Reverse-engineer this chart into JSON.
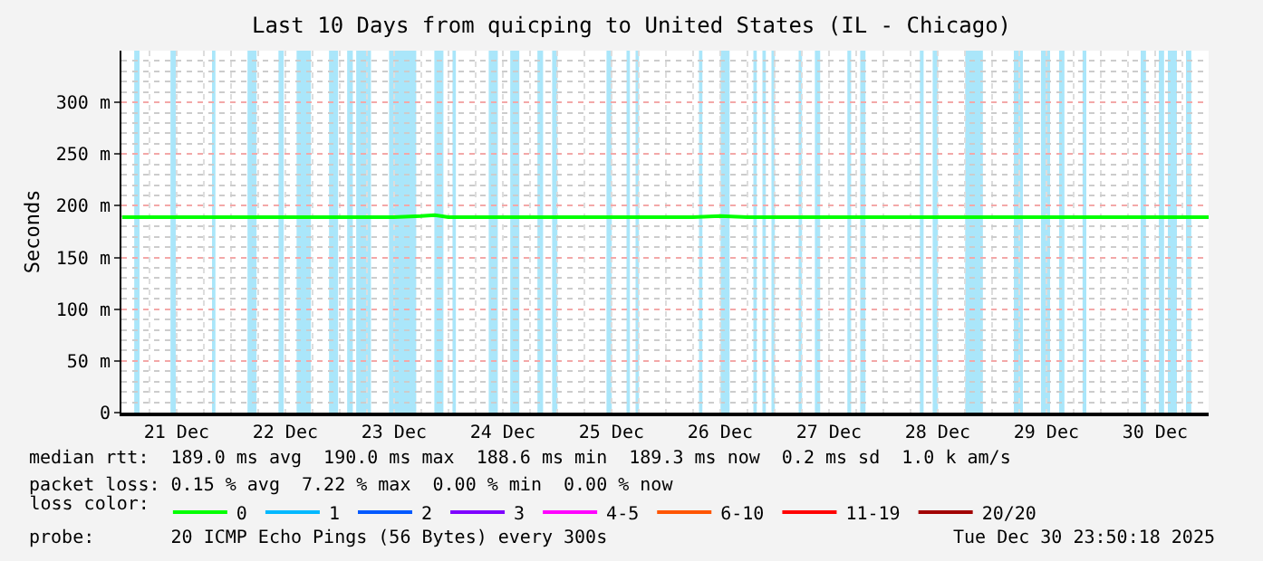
{
  "chart_data": {
    "type": "line",
    "title": "Last 10 Days from quicping to United States (IL - Chicago)",
    "ylabel": "Seconds",
    "x": [
      "2025-12-21T00:00",
      "2025-12-21T06:00",
      "2025-12-21T12:00",
      "2025-12-21T18:00",
      "2025-12-22T00:00",
      "2025-12-22T06:00",
      "2025-12-22T12:00",
      "2025-12-22T18:00",
      "2025-12-23T00:00",
      "2025-12-23T06:00",
      "2025-12-23T12:00",
      "2025-12-23T18:00",
      "2025-12-23T21:00",
      "2025-12-24T00:00",
      "2025-12-24T06:00",
      "2025-12-24T12:00",
      "2025-12-24T18:00",
      "2025-12-25T00:00",
      "2025-12-25T06:00",
      "2025-12-25T12:00",
      "2025-12-25T18:00",
      "2025-12-26T00:00",
      "2025-12-26T06:00",
      "2025-12-26T12:00",
      "2025-12-26T18:00",
      "2025-12-27T00:00",
      "2025-12-27T06:00",
      "2025-12-27T12:00",
      "2025-12-27T18:00",
      "2025-12-28T00:00",
      "2025-12-28T06:00",
      "2025-12-28T12:00",
      "2025-12-28T18:00",
      "2025-12-29T00:00",
      "2025-12-29T06:00",
      "2025-12-29T12:00",
      "2025-12-29T18:00",
      "2025-12-30T00:00",
      "2025-12-30T06:00",
      "2025-12-30T12:00",
      "2025-12-30T18:00",
      "2025-12-30T23:50"
    ],
    "series": [
      {
        "name": "0",
        "color": "#00ff00",
        "values": [
          189,
          189,
          189,
          189,
          189,
          189,
          189,
          189,
          189,
          189,
          189,
          190,
          191,
          189,
          189,
          189,
          189,
          189,
          189,
          189,
          189,
          189,
          189,
          190,
          189,
          189,
          189,
          189,
          189,
          189,
          189,
          189,
          189,
          189,
          189,
          189,
          189,
          189,
          189,
          189,
          189,
          189
        ]
      },
      {
        "name": "1",
        "color": "#00b8ff",
        "values": [
          null,
          null,
          null,
          null,
          null,
          null,
          null,
          null,
          null,
          null,
          null,
          null,
          null,
          null,
          null,
          null,
          null,
          null,
          null,
          null,
          null,
          null,
          null,
          null,
          null,
          null,
          null,
          null,
          null,
          null,
          null,
          null,
          null,
          null,
          null,
          null,
          null,
          null,
          null,
          null,
          null,
          null
        ]
      },
      {
        "name": "2",
        "color": "#0059ff",
        "values": [
          null,
          null,
          null,
          null,
          null,
          null,
          null,
          null,
          null,
          null,
          null,
          null,
          null,
          null,
          null,
          null,
          null,
          null,
          null,
          null,
          null,
          null,
          null,
          null,
          null,
          null,
          null,
          null,
          null,
          null,
          null,
          null,
          null,
          null,
          null,
          null,
          null,
          null,
          null,
          null,
          null,
          null
        ]
      },
      {
        "name": "3",
        "color": "#7e00ff",
        "values": [
          null,
          null,
          null,
          null,
          null,
          null,
          null,
          null,
          null,
          null,
          null,
          null,
          null,
          null,
          null,
          null,
          null,
          null,
          null,
          null,
          null,
          null,
          null,
          null,
          null,
          null,
          null,
          null,
          null,
          null,
          null,
          null,
          null,
          null,
          null,
          null,
          null,
          null,
          null,
          null,
          null,
          null
        ]
      },
      {
        "name": "4-5",
        "color": "#ff00ff",
        "values": [
          null,
          null,
          null,
          null,
          null,
          null,
          null,
          null,
          null,
          null,
          null,
          null,
          null,
          null,
          null,
          null,
          null,
          null,
          null,
          null,
          null,
          null,
          null,
          null,
          null,
          null,
          null,
          null,
          null,
          null,
          null,
          null,
          null,
          null,
          null,
          null,
          null,
          null,
          null,
          null,
          null,
          null
        ]
      },
      {
        "name": "6-10",
        "color": "#ff5500",
        "values": [
          null,
          null,
          null,
          null,
          null,
          null,
          null,
          null,
          null,
          null,
          null,
          null,
          null,
          null,
          null,
          null,
          null,
          null,
          null,
          null,
          null,
          null,
          null,
          null,
          null,
          null,
          null,
          null,
          null,
          null,
          null,
          null,
          null,
          null,
          null,
          null,
          null,
          null,
          null,
          null,
          null,
          null
        ]
      },
      {
        "name": "11-19",
        "color": "#ff0000",
        "values": [
          null,
          null,
          null,
          null,
          null,
          null,
          null,
          null,
          null,
          null,
          null,
          null,
          null,
          null,
          null,
          null,
          null,
          null,
          null,
          null,
          null,
          null,
          null,
          null,
          null,
          null,
          null,
          null,
          null,
          null,
          null,
          null,
          null,
          null,
          null,
          null,
          null,
          null,
          null,
          null,
          null,
          null
        ]
      },
      {
        "name": "20/20",
        "color": "#a10000",
        "values": [
          null,
          null,
          null,
          null,
          null,
          null,
          null,
          null,
          null,
          null,
          null,
          null,
          null,
          null,
          null,
          null,
          null,
          null,
          null,
          null,
          null,
          null,
          null,
          null,
          null,
          null,
          null,
          null,
          null,
          null,
          null,
          null,
          null,
          null,
          null,
          null,
          null,
          null,
          null,
          null,
          null,
          null
        ]
      }
    ],
    "legend_title": "loss color:",
    "legend": "bottom left",
    "xlim": [
      "2025-12-20T23:50",
      "2025-12-30T23:50"
    ],
    "xticks": [
      {
        "value": "2025-12-21T12:00",
        "label": "21 Dec"
      },
      {
        "value": "2025-12-22T12:00",
        "label": "22 Dec"
      },
      {
        "value": "2025-12-23T12:00",
        "label": "23 Dec"
      },
      {
        "value": "2025-12-24T12:00",
        "label": "24 Dec"
      },
      {
        "value": "2025-12-25T12:00",
        "label": "25 Dec"
      },
      {
        "value": "2025-12-26T12:00",
        "label": "26 Dec"
      },
      {
        "value": "2025-12-27T12:00",
        "label": "27 Dec"
      },
      {
        "value": "2025-12-28T12:00",
        "label": "28 Dec"
      },
      {
        "value": "2025-12-29T12:00",
        "label": "29 Dec"
      },
      {
        "value": "2025-12-30T12:00",
        "label": "30 Dec"
      }
    ],
    "ylim": [
      0,
      350
    ],
    "yticks": [
      0,
      {
        "value": 50,
        "label": "50 m"
      },
      {
        "value": 100,
        "label": "100 m"
      },
      {
        "value": 150,
        "label": "150 m"
      },
      {
        "value": 200,
        "label": "200 m"
      },
      {
        "value": 250,
        "label": "250 m"
      },
      {
        "value": 300,
        "label": "300 m"
      }
    ],
    "grid": true,
    "marker": "none",
    "line_style": "solid",
    "bands": [
      {
        "axis": "x",
        "from": "2025-12-21T02:40",
        "to": "2025-12-21T03:50",
        "color": "#aae6fa"
      },
      {
        "axis": "x",
        "from": "2025-12-21T10:40",
        "to": "2025-12-21T11:50",
        "color": "#aae6fa"
      },
      {
        "axis": "x",
        "from": "2025-12-21T19:50",
        "to": "2025-12-21T20:35",
        "color": "#aae6fa"
      },
      {
        "axis": "x",
        "from": "2025-12-22T03:40",
        "to": "2025-12-22T05:40",
        "color": "#aae6fa"
      },
      {
        "axis": "x",
        "from": "2025-12-22T10:30",
        "to": "2025-12-22T11:40",
        "color": "#aae6fa"
      },
      {
        "axis": "x",
        "from": "2025-12-22T14:30",
        "to": "2025-12-22T17:40",
        "color": "#aae6fa"
      },
      {
        "axis": "x",
        "from": "2025-12-22T21:40",
        "to": "2025-12-22T23:40",
        "color": "#aae6fa"
      },
      {
        "axis": "x",
        "from": "2025-12-23T01:40",
        "to": "2025-12-23T02:55",
        "color": "#aae6fa"
      },
      {
        "axis": "x",
        "from": "2025-12-23T03:40",
        "to": "2025-12-23T06:55",
        "color": "#aae6fa"
      },
      {
        "axis": "x",
        "from": "2025-12-23T10:55",
        "to": "2025-12-23T16:55",
        "color": "#aae6fa"
      },
      {
        "axis": "x",
        "from": "2025-12-23T20:55",
        "to": "2025-12-23T22:55",
        "color": "#aae6fa"
      },
      {
        "axis": "x",
        "from": "2025-12-24T00:55",
        "to": "2025-12-24T01:40",
        "color": "#aae6fa"
      },
      {
        "axis": "x",
        "from": "2025-12-24T08:55",
        "to": "2025-12-24T10:55",
        "color": "#aae6fa"
      },
      {
        "axis": "x",
        "from": "2025-12-24T13:40",
        "to": "2025-12-24T15:40",
        "color": "#aae6fa"
      },
      {
        "axis": "x",
        "from": "2025-12-24T19:40",
        "to": "2025-12-24T20:55",
        "color": "#aae6fa"
      },
      {
        "axis": "x",
        "from": "2025-12-24T22:55",
        "to": "2025-12-25T00:05",
        "color": "#aae6fa"
      },
      {
        "axis": "x",
        "from": "2025-12-25T10:55",
        "to": "2025-12-25T12:05",
        "color": "#aae6fa"
      },
      {
        "axis": "x",
        "from": "2025-12-25T15:20",
        "to": "2025-12-25T16:05",
        "color": "#aae6fa"
      },
      {
        "axis": "x",
        "from": "2025-12-25T17:20",
        "to": "2025-12-25T18:05",
        "color": "#aae6fa"
      },
      {
        "axis": "x",
        "from": "2025-12-26T07:20",
        "to": "2025-12-26T08:05",
        "color": "#aae6fa"
      },
      {
        "axis": "x",
        "from": "2025-12-26T12:05",
        "to": "2025-12-26T14:05",
        "color": "#aae6fa"
      },
      {
        "axis": "x",
        "from": "2025-12-26T19:20",
        "to": "2025-12-26T20:05",
        "color": "#aae6fa"
      },
      {
        "axis": "x",
        "from": "2025-12-26T21:20",
        "to": "2025-12-26T22:05",
        "color": "#aae6fa"
      },
      {
        "axis": "x",
        "from": "2025-12-26T23:20",
        "to": "2025-12-27T00:05",
        "color": "#aae6fa"
      },
      {
        "axis": "x",
        "from": "2025-12-27T05:20",
        "to": "2025-12-27T06:05",
        "color": "#aae6fa"
      },
      {
        "axis": "x",
        "from": "2025-12-27T08:55",
        "to": "2025-12-27T10:05",
        "color": "#aae6fa"
      },
      {
        "axis": "x",
        "from": "2025-12-27T16:05",
        "to": "2025-12-27T16:55",
        "color": "#aae6fa"
      },
      {
        "axis": "x",
        "from": "2025-12-27T18:55",
        "to": "2025-12-27T20:05",
        "color": "#aae6fa"
      },
      {
        "axis": "x",
        "from": "2025-12-28T08:05",
        "to": "2025-12-28T08:55",
        "color": "#aae6fa"
      },
      {
        "axis": "x",
        "from": "2025-12-28T10:55",
        "to": "2025-12-28T12:05",
        "color": "#aae6fa"
      },
      {
        "axis": "x",
        "from": "2025-12-28T18:05",
        "to": "2025-12-28T22:00",
        "color": "#aae6fa"
      },
      {
        "axis": "x",
        "from": "2025-12-29T04:50",
        "to": "2025-12-29T06:50",
        "color": "#aae6fa"
      },
      {
        "axis": "x",
        "from": "2025-12-29T10:50",
        "to": "2025-12-29T12:50",
        "color": "#aae6fa"
      },
      {
        "axis": "x",
        "from": "2025-12-29T14:50",
        "to": "2025-12-29T16:00",
        "color": "#aae6fa"
      },
      {
        "axis": "x",
        "from": "2025-12-29T20:00",
        "to": "2025-12-29T20:50",
        "color": "#aae6fa"
      },
      {
        "axis": "x",
        "from": "2025-12-30T08:50",
        "to": "2025-12-30T10:00",
        "color": "#aae6fa"
      },
      {
        "axis": "x",
        "from": "2025-12-30T12:50",
        "to": "2025-12-30T14:00",
        "color": "#aae6fa"
      },
      {
        "axis": "x",
        "from": "2025-12-30T14:50",
        "to": "2025-12-30T16:50",
        "color": "#aae6fa"
      },
      {
        "axis": "x",
        "from": "2025-12-30T18:50",
        "to": "2025-12-30T20:00",
        "color": "#aae6fa"
      }
    ],
    "annotations": [
      "median rtt:  189.0 ms avg  190.0 ms max  188.6 ms min  189.3 ms now  0.2 ms sd  1.0 k am/s",
      "packet loss: 0.15 % avg  7.22 % max  0.00 % min  0.00 % now",
      "probe:       20 ICMP Echo Pings (56 Bytes) every 300s",
      "Tue Dec 30 23:50:18 2025"
    ]
  }
}
